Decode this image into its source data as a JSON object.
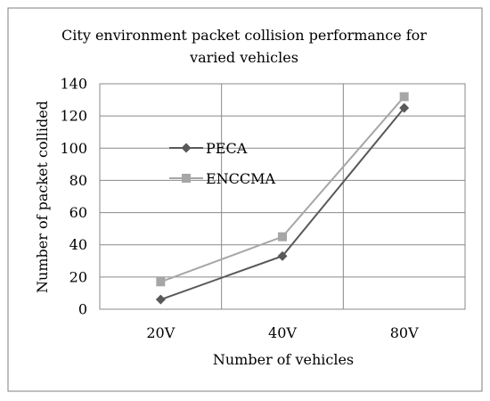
{
  "chart_data": {
    "type": "line",
    "title_lines": [
      "City environment packet collision performance for",
      "varied vehicles"
    ],
    "xlabel": "Number of vehicles",
    "ylabel": "Number of packet collided",
    "categories": [
      "20V",
      "40V",
      "80V"
    ],
    "ylim": [
      0,
      140
    ],
    "yticks": [
      0,
      20,
      40,
      60,
      80,
      100,
      120,
      140
    ],
    "grid": true,
    "legend_position": "inside-top-left",
    "series": [
      {
        "name": "PECA",
        "values": [
          6,
          33,
          125
        ],
        "color": "#595959",
        "marker": "diamond"
      },
      {
        "name": "ENCCMA",
        "values": [
          17,
          45,
          132
        ],
        "color": "#a6a6a6",
        "marker": "square"
      }
    ]
  }
}
